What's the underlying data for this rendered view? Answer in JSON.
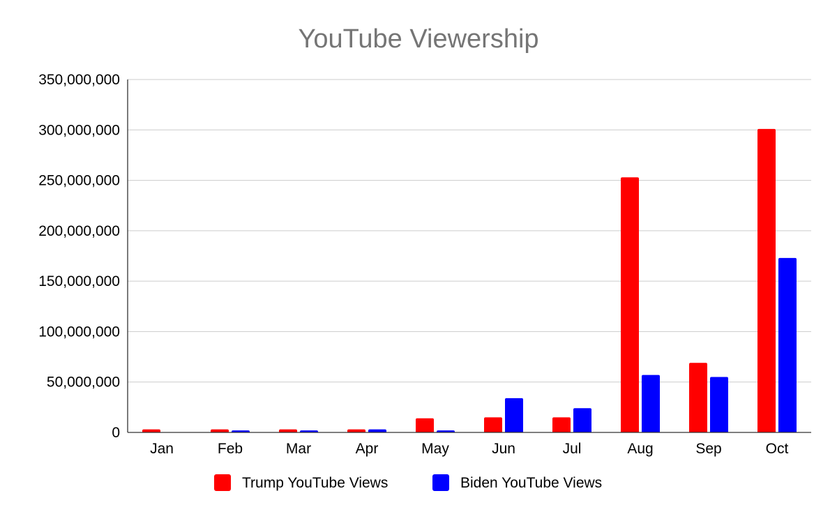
{
  "chart_data": {
    "type": "bar",
    "title": "YouTube Viewership",
    "xlabel": "",
    "ylabel": "",
    "categories": [
      "Jan",
      "Feb",
      "Mar",
      "Apr",
      "May",
      "Jun",
      "Jul",
      "Aug",
      "Sep",
      "Oct"
    ],
    "series": [
      {
        "name": "Trump YouTube Views",
        "color": "#ff0000",
        "values": [
          3000000,
          3000000,
          3000000,
          3000000,
          14000000,
          15000000,
          15000000,
          253000000,
          69000000,
          301000000
        ]
      },
      {
        "name": "Biden YouTube Views",
        "color": "#0000ff",
        "values": [
          0,
          2000000,
          2000000,
          3000000,
          2000000,
          34000000,
          24000000,
          57000000,
          55000000,
          173000000
        ]
      }
    ],
    "ylim": [
      0,
      350000000
    ],
    "yticks": [
      "0",
      "50,000,000",
      "100,000,000",
      "150,000,000",
      "200,000,000",
      "250,000,000",
      "300,000,000",
      "350,000,000"
    ],
    "ytick_values": [
      0,
      50000000,
      100000000,
      150000000,
      200000000,
      250000000,
      300000000,
      350000000
    ],
    "grid": true,
    "legend_position": "bottom"
  }
}
